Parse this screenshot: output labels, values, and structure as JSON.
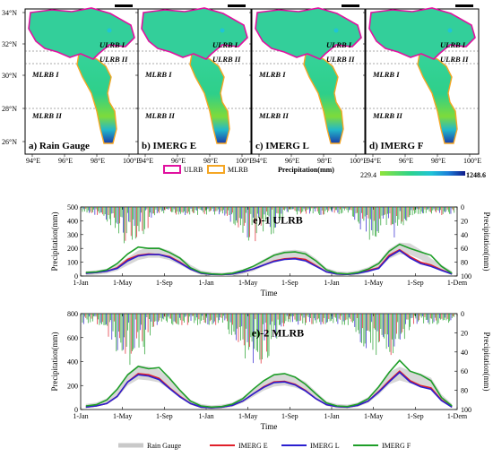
{
  "map_panels": [
    {
      "label": "a) Rain Gauge"
    },
    {
      "label": "b) IMERG E"
    },
    {
      "label": "c) IMERG L"
    },
    {
      "label": "d) IMERG F"
    }
  ],
  "map_lat_ticks": [
    "34°N",
    "32°N",
    "30°N",
    "28°N",
    "26°N"
  ],
  "map_lon_ticks": [
    "94°E",
    "96°E",
    "98°E",
    "100°E"
  ],
  "region_labels": {
    "ulrb1": "ULRB I",
    "ulrb2": "ULRB II",
    "mlrb1": "MLRB I",
    "mlrb2": "MLRB II"
  },
  "map_legend": {
    "ulrb": "ULRB",
    "mlrb": "MLRB",
    "precip_title": "Precipitation(mm)",
    "min": "229.4",
    "max": "1248.6",
    "ulrb_color": "#e0119f",
    "mlrb_color": "#f5a623"
  },
  "chart_data": [
    {
      "type": "line",
      "title": "e)-1 ULRB",
      "xlabel": "Time",
      "ylabel": "Precipitation(mm)",
      "ylabel_right": "Precipitation(mm)",
      "x_ticks": [
        "1-Jan",
        "1-May",
        "1-Sep",
        "1-Jan",
        "1-May",
        "1-Sep",
        "1-Jan",
        "1-May",
        "1-Sep",
        "1-Dem"
      ],
      "y_ticks": [
        "0",
        "100",
        "200",
        "300",
        "400",
        "500"
      ],
      "y_right_ticks": [
        "0",
        "20",
        "40",
        "60",
        "80",
        "100"
      ],
      "ylim": [
        0,
        500
      ],
      "y_right_lim": [
        0,
        100
      ],
      "series": [
        {
          "name": "Rain Gauge",
          "color": "#c9c9c9",
          "values": [
            20,
            25,
            35,
            60,
            105,
            150,
            170,
            170,
            150,
            110,
            60,
            25,
            15,
            10,
            15,
            30,
            55,
            95,
            130,
            150,
            155,
            145,
            100,
            40,
            20,
            15,
            25,
            45,
            80,
            160,
            200,
            195,
            155,
            100,
            60,
            20
          ]
        },
        {
          "name": "IMERG E",
          "color": "#e0202a",
          "values": [
            20,
            25,
            35,
            60,
            120,
            150,
            160,
            155,
            140,
            100,
            50,
            20,
            12,
            10,
            15,
            30,
            50,
            80,
            110,
            125,
            130,
            120,
            75,
            30,
            15,
            12,
            20,
            40,
            60,
            150,
            190,
            140,
            100,
            80,
            45,
            15
          ]
        },
        {
          "name": "IMERG L",
          "color": "#2a1fd0",
          "values": [
            20,
            25,
            35,
            55,
            110,
            145,
            155,
            155,
            135,
            95,
            50,
            20,
            12,
            10,
            15,
            30,
            50,
            80,
            105,
            120,
            125,
            110,
            70,
            30,
            15,
            12,
            20,
            35,
            55,
            140,
            185,
            130,
            90,
            70,
            40,
            15
          ]
        },
        {
          "name": "IMERG F",
          "color": "#1e9e28",
          "values": [
            25,
            30,
            45,
            90,
            160,
            210,
            200,
            200,
            170,
            130,
            60,
            25,
            15,
            12,
            20,
            40,
            70,
            110,
            150,
            170,
            175,
            160,
            110,
            45,
            20,
            15,
            25,
            50,
            90,
            180,
            230,
            200,
            175,
            150,
            70,
            20
          ]
        }
      ]
    },
    {
      "type": "line",
      "title": "e)-2 MLRB",
      "xlabel": "Time",
      "ylabel": "Precipitation(mm)",
      "ylabel_right": "Precipitation(mm)",
      "x_ticks": [
        "1-Jan",
        "1-May",
        "1-Sep",
        "1-Jan",
        "1-May",
        "1-Sep",
        "1-Jan",
        "1-May",
        "1-Sep",
        "1-Dem"
      ],
      "y_ticks": [
        "0",
        "200",
        "400",
        "600",
        "800"
      ],
      "y_right_ticks": [
        "0",
        "20",
        "40",
        "60",
        "80",
        "100"
      ],
      "ylim": [
        0,
        800
      ],
      "y_right_lim": [
        0,
        100
      ],
      "series": [
        {
          "name": "Rain Gauge",
          "color": "#c9c9c9",
          "values": [
            30,
            40,
            70,
            130,
            250,
            310,
            300,
            280,
            210,
            130,
            60,
            30,
            20,
            25,
            40,
            80,
            140,
            200,
            240,
            250,
            230,
            190,
            120,
            50,
            30,
            25,
            40,
            80,
            160,
            260,
            300,
            270,
            250,
            220,
            100,
            30
          ]
        },
        {
          "name": "IMERG E",
          "color": "#e0202a",
          "values": [
            20,
            30,
            50,
            110,
            230,
            300,
            290,
            260,
            180,
            110,
            50,
            20,
            15,
            20,
            35,
            70,
            130,
            190,
            230,
            235,
            210,
            160,
            90,
            40,
            25,
            20,
            35,
            70,
            150,
            240,
            320,
            240,
            200,
            180,
            80,
            20
          ]
        },
        {
          "name": "IMERG L",
          "color": "#2a1fd0",
          "values": [
            20,
            30,
            50,
            110,
            230,
            290,
            280,
            250,
            175,
            105,
            50,
            20,
            15,
            20,
            35,
            70,
            130,
            185,
            225,
            230,
            205,
            155,
            90,
            40,
            25,
            20,
            35,
            70,
            145,
            230,
            310,
            230,
            190,
            170,
            75,
            20
          ]
        },
        {
          "name": "IMERG F",
          "color": "#1e9e28",
          "values": [
            30,
            40,
            80,
            170,
            290,
            360,
            340,
            350,
            260,
            160,
            70,
            30,
            20,
            25,
            45,
            90,
            170,
            240,
            290,
            300,
            270,
            210,
            130,
            55,
            30,
            25,
            45,
            90,
            190,
            310,
            410,
            320,
            290,
            240,
            100,
            30
          ]
        }
      ]
    }
  ],
  "legend": {
    "items": [
      "Rain Gauge",
      "IMERG E",
      "IMERG L",
      "IMERG F"
    ]
  }
}
